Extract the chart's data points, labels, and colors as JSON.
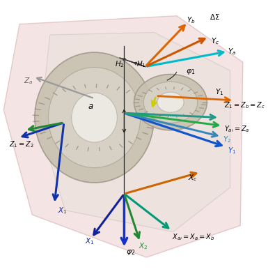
{
  "title": "",
  "background_color": "#ffffff",
  "fig_width": 3.85,
  "fig_height": 3.93,
  "dpi": 100,
  "arrow_colors": {
    "dark_blue": "#1a3a8c",
    "blue": "#2255cc",
    "green": "#228B22",
    "teal": "#008B8B",
    "cyan": "#00cccc",
    "orange": "#dd7700",
    "yellow": "#ddcc00",
    "cyan_arrow": "#00bbcc"
  },
  "bg_hex_color": "#f5e8e8",
  "gear_color": "#d0c8b8",
  "box_color": "#e8e0e0"
}
